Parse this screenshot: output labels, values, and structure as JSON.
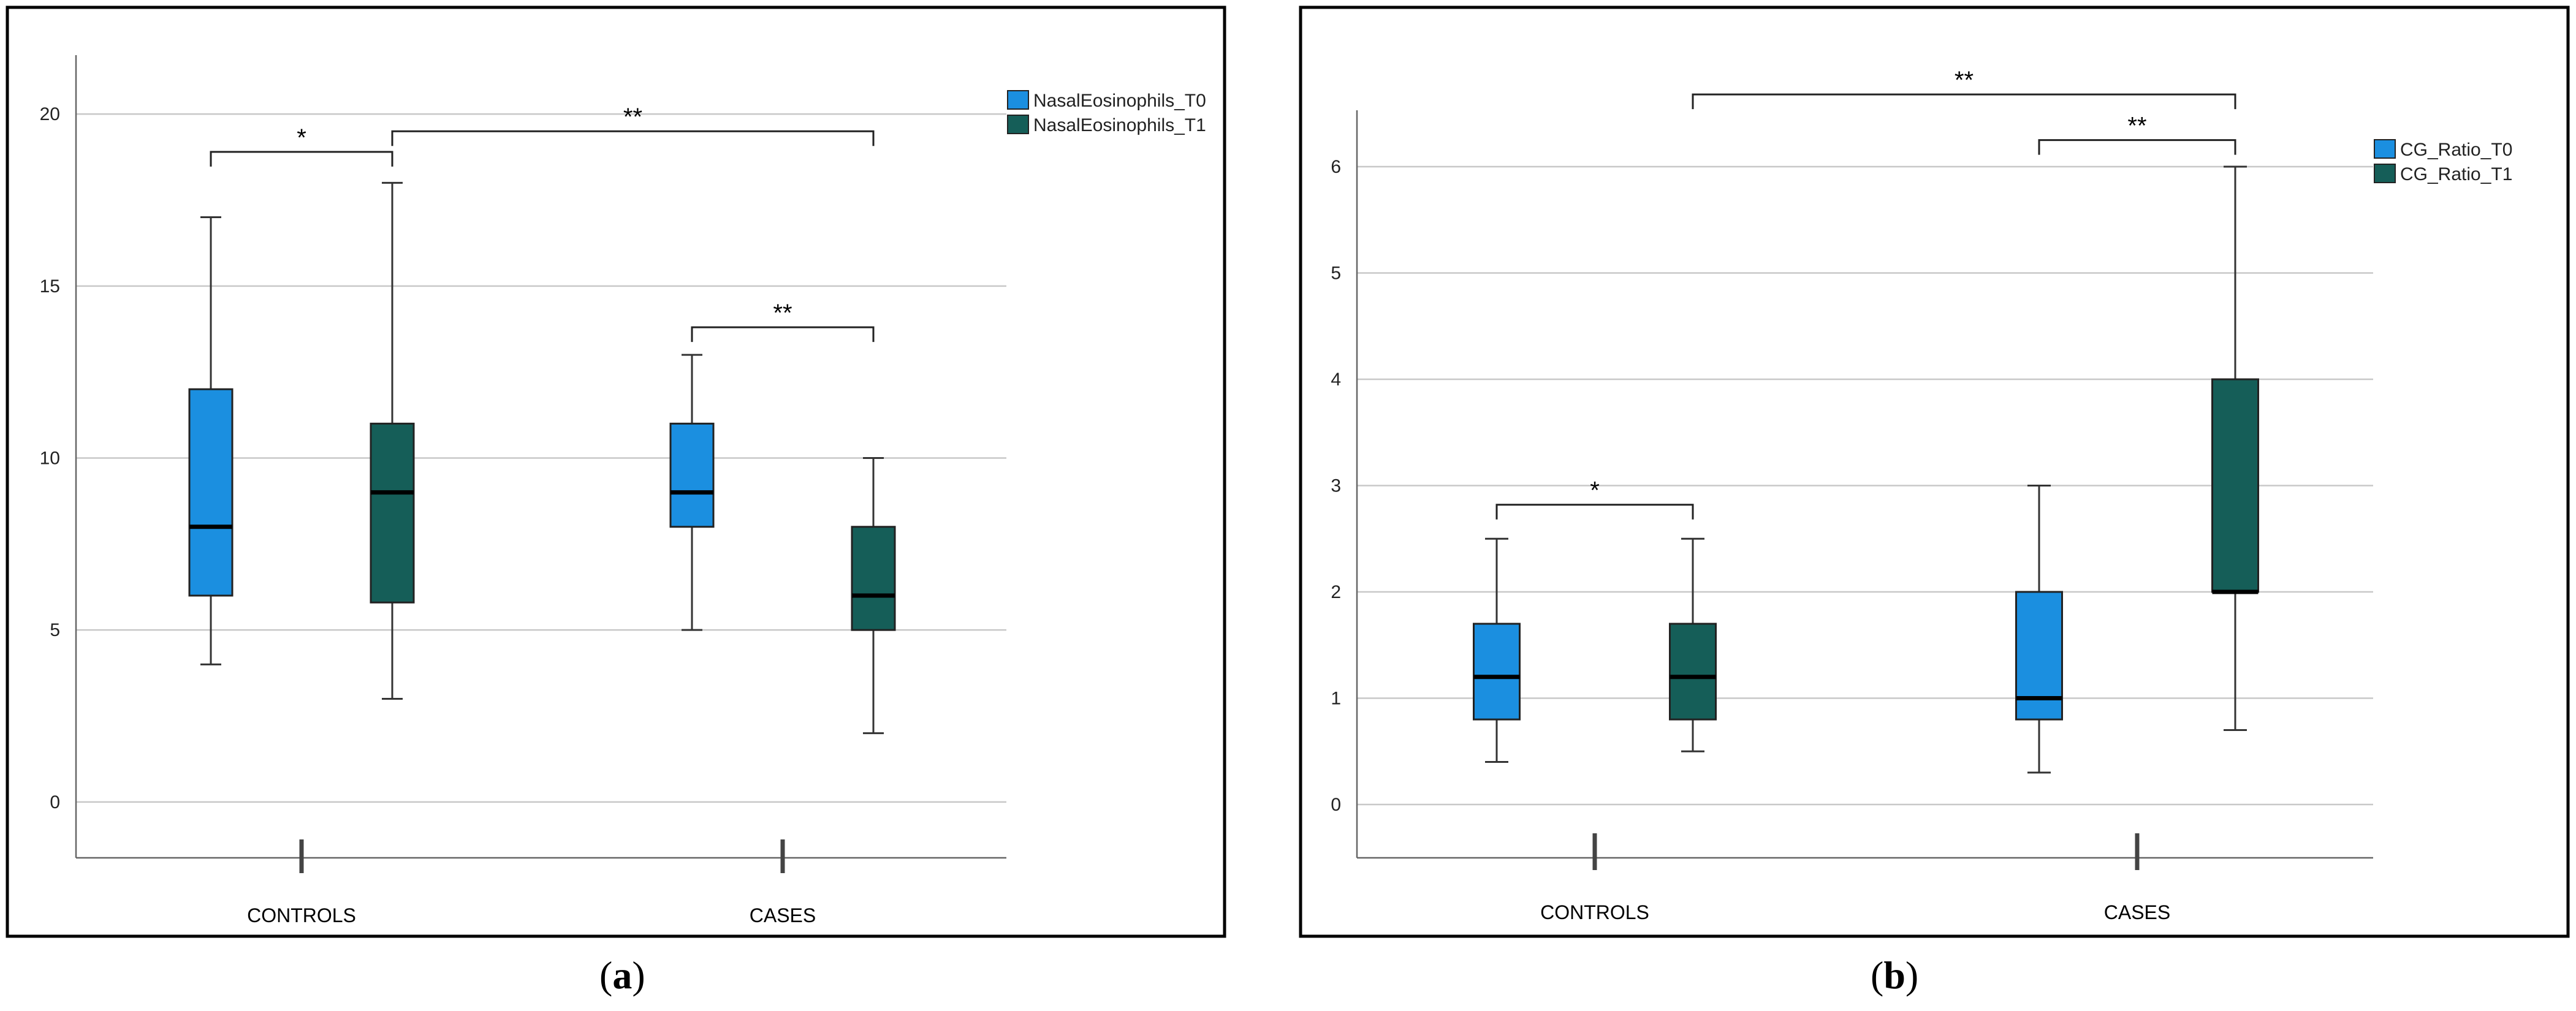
{
  "colors": {
    "t0": "#1b8fe0",
    "t1": "#155e58",
    "grid": "#c8c8c8",
    "axis": "#666666",
    "frame": "#000000"
  },
  "chart_data": [
    {
      "type": "boxplot",
      "panel_label": "a",
      "categories": [
        "CONTROLS",
        "CASES"
      ],
      "y_ticks": [
        "0",
        "5",
        "10",
        "15",
        "20"
      ],
      "ylim": [
        -1,
        21
      ],
      "grid": true,
      "legend_position": "top-right",
      "series": [
        {
          "name": "NasalEosinophils_T0",
          "color_key": "t0",
          "boxes": [
            {
              "category": "CONTROLS",
              "min": 4,
              "q1": 6,
              "median": 8,
              "q3": 12,
              "max": 17
            },
            {
              "category": "CASES",
              "min": 5,
              "q1": 8,
              "median": 9,
              "q3": 11,
              "max": 13
            }
          ]
        },
        {
          "name": "NasalEosinophils_T1",
          "color_key": "t1",
          "boxes": [
            {
              "category": "CONTROLS",
              "min": 3,
              "q1": 5.8,
              "median": 9,
              "q3": 11,
              "max": 18
            },
            {
              "category": "CASES",
              "min": 2,
              "q1": 5,
              "median": 6,
              "q3": 8,
              "max": 10
            }
          ]
        }
      ],
      "significance": [
        {
          "label": "*",
          "from": [
            0,
            0
          ],
          "to": [
            0,
            1
          ],
          "y": 18.9
        },
        {
          "label": "**",
          "from": [
            0,
            1
          ],
          "to": [
            1,
            1
          ],
          "y": 19.5
        },
        {
          "label": "**",
          "from": [
            1,
            0
          ],
          "to": [
            1,
            1
          ],
          "y": 13.8
        }
      ]
    },
    {
      "type": "boxplot",
      "panel_label": "b",
      "categories": [
        "CONTROLS",
        "CASES"
      ],
      "y_ticks": [
        "0",
        "1",
        "2",
        "3",
        "4",
        "5",
        "6"
      ],
      "ylim": [
        -0.3,
        6.3
      ],
      "grid": true,
      "legend_position": "top-right",
      "series": [
        {
          "name": "CG_Ratio_T0",
          "color_key": "t0",
          "boxes": [
            {
              "category": "CONTROLS",
              "min": 0.4,
              "q1": 0.8,
              "median": 1.2,
              "q3": 1.7,
              "max": 2.5
            },
            {
              "category": "CASES",
              "min": 0.3,
              "q1": 0.8,
              "median": 1.0,
              "q3": 2.0,
              "max": 3.0
            }
          ]
        },
        {
          "name": "CG_Ratio_T1",
          "color_key": "t1",
          "boxes": [
            {
              "category": "CONTROLS",
              "min": 0.5,
              "q1": 0.8,
              "median": 1.2,
              "q3": 1.7,
              "max": 2.5
            },
            {
              "category": "CASES",
              "min": 0.7,
              "q1": 2.0,
              "median": 2.0,
              "q3": 4.0,
              "max": 6.0
            }
          ]
        }
      ],
      "significance": [
        {
          "label": "*",
          "from": [
            0,
            0
          ],
          "to": [
            0,
            1
          ],
          "y": 2.82
        },
        {
          "label": "**",
          "from": [
            1,
            0
          ],
          "to": [
            1,
            1
          ],
          "y": 6.25
        },
        {
          "label": "**",
          "from": [
            0,
            1
          ],
          "to": [
            1,
            1
          ],
          "y": 6.68
        }
      ]
    }
  ]
}
